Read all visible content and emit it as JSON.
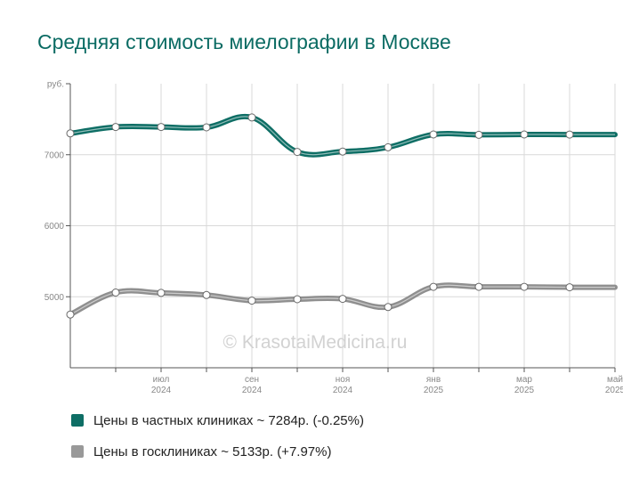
{
  "title": "Средняя стоимость миелографии в Москве",
  "watermark": "© KrasotaiMedicina.ru",
  "colors": {
    "private": "#0e6e65",
    "public": "#8f8f8f",
    "grid": "#d9d9d9",
    "axis": "#555555",
    "text": "#888888"
  },
  "legend": [
    {
      "label": "Цены в частных клиниках ~ 7284р. (-0.25%)",
      "color": "#0e6e65"
    },
    {
      "label": "Цены в госклиниках ~ 5133р. (+7.97%)",
      "color": "#999999"
    }
  ],
  "chart_data": {
    "type": "line",
    "ylabel": "руб.",
    "ylim": [
      4000,
      8000
    ],
    "yticks": [
      5000,
      6000,
      7000
    ],
    "x": [
      "2024-05",
      "2024-06",
      "2024-07",
      "2024-08",
      "2024-09",
      "2024-10",
      "2024-11",
      "2024-12",
      "2025-01",
      "2025-02",
      "2025-03",
      "2025-04",
      "2025-05"
    ],
    "xtick_labels": [
      {
        "month": "июл",
        "year": "2024"
      },
      {
        "month": "сен",
        "year": "2024"
      },
      {
        "month": "ноя",
        "year": "2024"
      },
      {
        "month": "янв",
        "year": "2025"
      },
      {
        "month": "мар",
        "year": "2025"
      },
      {
        "month": "май",
        "year": "2025"
      }
    ],
    "grid": true,
    "series": [
      {
        "name": "Цены в частных клиниках",
        "values": [
          7300,
          7390,
          7390,
          7385,
          7525,
          7040,
          7045,
          7105,
          7285,
          7280,
          7285,
          7284,
          7284
        ]
      },
      {
        "name": "Цены в госклиниках",
        "values": [
          4750,
          5060,
          5055,
          5025,
          4945,
          4965,
          4970,
          4855,
          5140,
          5140,
          5140,
          5133,
          5133
        ]
      }
    ]
  }
}
